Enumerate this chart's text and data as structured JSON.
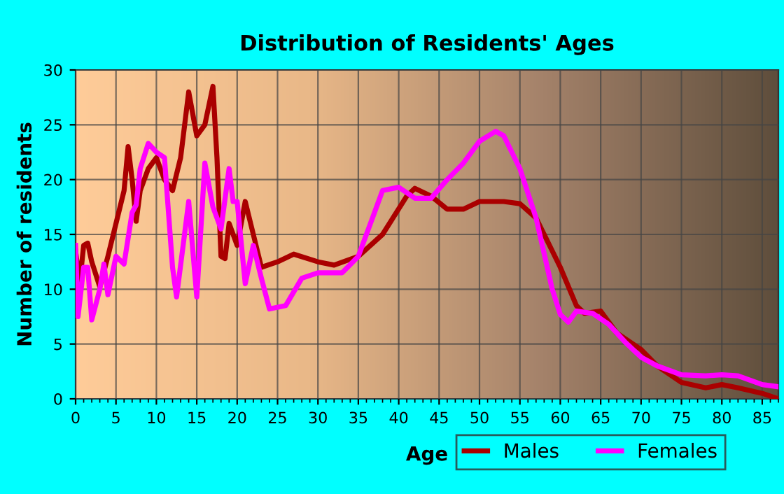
{
  "chart_data": {
    "type": "line",
    "title": "Distribution of Residents' Ages",
    "xlabel": "Age",
    "ylabel": "Number of residents",
    "xlim": [
      0,
      87
    ],
    "xticks": [
      0,
      5,
      10,
      15,
      20,
      25,
      30,
      35,
      40,
      45,
      50,
      55,
      60,
      65,
      70,
      75,
      80,
      85
    ],
    "ylim": [
      0,
      30
    ],
    "yticks": [
      0,
      5,
      10,
      15,
      20,
      25,
      30
    ],
    "grid": true,
    "legend": "bottom right",
    "marker": "none",
    "line_style": "solid",
    "series": [
      {
        "name": "Males",
        "color": "#aa0000",
        "x": [
          0,
          0.5,
          1,
          1.5,
          2,
          3,
          4,
          5,
          6,
          6.5,
          7,
          7.5,
          8,
          9,
          10,
          11,
          12,
          13,
          14,
          15,
          16,
          17,
          17.5,
          18,
          18.5,
          19,
          20,
          21,
          22,
          23,
          25,
          27,
          30,
          32,
          35,
          38,
          41,
          42,
          44,
          46,
          48,
          50,
          53,
          55,
          57,
          58,
          60,
          62,
          63,
          65,
          67,
          70,
          72,
          75,
          78,
          80,
          82,
          85,
          87
        ],
        "values": [
          13.5,
          10.5,
          14,
          14.2,
          12.5,
          10.2,
          13,
          16,
          19,
          23,
          20,
          16.2,
          19,
          21,
          22,
          20,
          19,
          22,
          28,
          24,
          25,
          28.5,
          22,
          13,
          12.8,
          16,
          14,
          18,
          15,
          12,
          12.5,
          13.2,
          12.5,
          12.2,
          13,
          15,
          18.5,
          19.2,
          18.5,
          17.3,
          17.3,
          18,
          18,
          17.8,
          16.5,
          15,
          12,
          8.5,
          7.8,
          8,
          6,
          4.5,
          3,
          1.5,
          1,
          1.3,
          1,
          0.5,
          0
        ]
      },
      {
        "name": "Females",
        "color": "#ff00ff",
        "x": [
          0,
          0.3,
          1,
          1.5,
          2,
          3,
          3.5,
          4,
          5,
          6,
          7,
          7.5,
          8,
          9,
          10,
          11,
          12,
          12.5,
          14,
          15,
          16,
          17,
          18,
          19,
          19.5,
          20,
          21,
          22,
          23,
          24,
          26,
          28,
          30,
          33,
          35,
          37,
          38,
          40,
          42,
          44,
          46,
          48,
          50,
          52,
          53,
          55,
          57,
          59,
          60,
          61,
          62,
          64,
          66,
          68,
          70,
          72,
          75,
          78,
          80,
          82,
          85,
          87
        ],
        "values": [
          14,
          7.5,
          12,
          12,
          7.2,
          10,
          12.3,
          9.5,
          13,
          12.3,
          17,
          17.7,
          21,
          23.3,
          22.5,
          22,
          12,
          9.3,
          18,
          9.3,
          21.5,
          17.5,
          15.5,
          21,
          18,
          18,
          10.5,
          14,
          11,
          8.2,
          8.5,
          11,
          11.5,
          11.5,
          13,
          17,
          19,
          19.3,
          18.3,
          18.3,
          20,
          21.5,
          23.5,
          24.4,
          24,
          21,
          16.5,
          10,
          7.7,
          7,
          8,
          7.8,
          6.8,
          5.2,
          3.8,
          3,
          2.2,
          2.1,
          2.2,
          2.1,
          1.3,
          1.1
        ]
      }
    ]
  }
}
